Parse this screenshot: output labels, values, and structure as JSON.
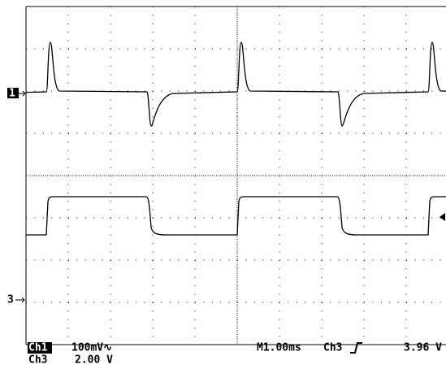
{
  "markers": {
    "ch1": "1",
    "ch3": "3"
  },
  "readout": {
    "ch1_name": "Ch1",
    "ch1_scale": "100mV∿",
    "ch3_name": "Ch3",
    "ch3_scale": "2.00 V",
    "timebase": "M1.00ms",
    "trigger_source": "Ch3",
    "trigger_level": "3.96 V"
  }
}
